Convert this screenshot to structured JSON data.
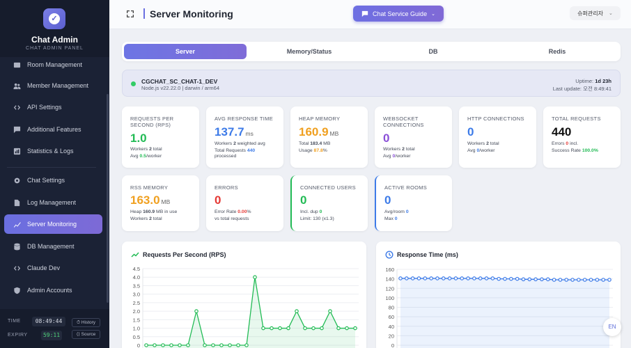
{
  "sidebar": {
    "brand_title": "Chat Admin",
    "brand_subtitle": "CHAT ADMIN PANEL",
    "items": [
      {
        "label": "Room Management",
        "icon": "room-icon"
      },
      {
        "label": "Member Management",
        "icon": "users-icon"
      },
      {
        "label": "API Settings",
        "icon": "code-icon"
      },
      {
        "label": "Additional Features",
        "icon": "chat-icon"
      },
      {
        "label": "Statistics & Logs",
        "icon": "stats-icon"
      },
      {
        "label": "Chat Settings",
        "icon": "gear-icon"
      },
      {
        "label": "Log Management",
        "icon": "file-icon"
      },
      {
        "label": "Server Monitoring",
        "icon": "chart-line-icon",
        "active": true
      },
      {
        "label": "DB Management",
        "icon": "database-icon"
      },
      {
        "label": "Claude Dev",
        "icon": "code-icon"
      },
      {
        "label": "Admin Accounts",
        "icon": "shield-icon"
      }
    ],
    "footer": {
      "time_label": "TIME",
      "time_value": "08:49:44",
      "history_label": "History",
      "expiry_label": "EXPIRY",
      "expiry_value": "59:11",
      "source_label": "Source"
    }
  },
  "header": {
    "title": "Server Monitoring",
    "guide_button": "Chat Service Guide",
    "user_button": "슈퍼관리자"
  },
  "tabs": [
    {
      "label": "Server",
      "active": true
    },
    {
      "label": "Memory/Status"
    },
    {
      "label": "DB"
    },
    {
      "label": "Redis"
    }
  ],
  "server": {
    "name": "CGCHAT_SC_CHAT-1_DEV",
    "info": "Node.js v22.22.0 | darwin / arm64",
    "uptime_label": "Uptime:",
    "uptime_value": "1d 23h",
    "last_update_label": "Last update:",
    "last_update_value": "오전 8:49:41",
    "status_color": "#33cc66"
  },
  "cards": {
    "rps": {
      "label": "REQUESTS PER SECOND (RPS)",
      "value": "1.0",
      "sub1_a": "Workers ",
      "sub1_b": "2",
      "sub1_c": " total",
      "sub2_a": "Avg ",
      "sub2_b": "0.5",
      "sub2_c": "/worker"
    },
    "avg_response": {
      "label": "AVG RESPONSE TIME",
      "value": "137.7",
      "unit": "ms",
      "sub1_a": "Workers ",
      "sub1_b": "2",
      "sub1_c": " weighted avg",
      "sub2_a": "Total Requests ",
      "sub2_b": "440",
      "sub3": "processed"
    },
    "heap": {
      "label": "HEAP MEMORY",
      "value": "160.9",
      "unit": "MB",
      "sub1_a": "Total ",
      "sub1_b": "183.4",
      "sub1_c": " MB",
      "sub2_a": "Usage ",
      "sub2_b": "87.8",
      "sub2_c": "%"
    },
    "websocket": {
      "label": "WEBSOCKET CONNECTIONS",
      "value": "0",
      "sub1_a": "Workers ",
      "sub1_b": "2",
      "sub1_c": " total",
      "sub2_a": "Avg ",
      "sub2_b": "0",
      "sub2_c": "/worker"
    },
    "http": {
      "label": "HTTP CONNECTIONS",
      "value": "0",
      "sub1_a": "Workers ",
      "sub1_b": "2",
      "sub1_c": " total",
      "sub2_a": "Avg ",
      "sub2_b": "0",
      "sub2_c": "/worker"
    },
    "total_requests": {
      "label": "TOTAL REQUESTS",
      "value": "440",
      "sub1_a": "Errors ",
      "sub1_b": "0",
      "sub1_c": " incl.",
      "sub2_a": "Success Rate ",
      "sub2_b": "100.0%"
    },
    "rss": {
      "label": "RSS MEMORY",
      "value": "163.0",
      "unit": "MB",
      "sub1_a": "Heap ",
      "sub1_b": "160.9",
      "sub1_c": " MB in use",
      "sub2_a": "Workers ",
      "sub2_b": "2",
      "sub2_c": " total"
    },
    "errors": {
      "label": "ERRORS",
      "value": "0",
      "sub1_a": "Error Rate ",
      "sub1_b": "0.00",
      "sub1_c": "%",
      "sub2": "vs total requests"
    },
    "connected_users": {
      "label": "CONNECTED USERS",
      "value": "0",
      "sub1_a": "Incl. dup ",
      "sub1_b": "0",
      "sub2": "Limit: 130 (x1.3)"
    },
    "active_rooms": {
      "label": "ACTIVE ROOMS",
      "value": "0",
      "sub1_a": "Avg/room ",
      "sub1_b": "0",
      "sub2_a": "Max ",
      "sub2_b": "0"
    }
  },
  "colors": {
    "green": "#22bb55",
    "blue": "#3d7be8",
    "orange": "#f0a020",
    "purple": "#8a4fd8",
    "red": "#e53935",
    "black": "#111111",
    "accent": "#6a6fe0"
  },
  "lang_button": "EN",
  "chart_data": [
    {
      "type": "line",
      "title": "Requests Per Second (RPS)",
      "ylim": [
        0,
        4.5
      ],
      "yticks": [
        "4.5",
        "4.0",
        "3.5",
        "3.0",
        "2.5",
        "2.0",
        "1.5",
        "1.0",
        "0.5",
        "0"
      ],
      "series": [
        {
          "values": [
            0,
            0,
            0,
            0,
            0,
            0,
            2,
            0,
            0,
            0,
            0,
            0,
            0,
            4,
            1,
            1,
            1,
            1,
            2,
            1,
            1,
            1,
            2,
            1,
            1,
            1
          ]
        }
      ]
    },
    {
      "type": "line",
      "title": "Response Time (ms)",
      "ylim": [
        0,
        160
      ],
      "yticks": [
        "160",
        "140",
        "120",
        "100",
        "80",
        "60",
        "40",
        "20",
        "0"
      ],
      "series": [
        {
          "values": [
            141,
            141,
            141,
            141,
            141,
            141,
            141,
            141,
            141,
            141,
            141,
            141,
            141,
            141,
            141,
            141,
            140,
            140,
            140,
            140,
            139,
            139,
            139,
            139,
            139,
            138,
            138,
            138,
            138,
            138,
            138,
            138,
            138,
            138,
            138
          ]
        }
      ]
    }
  ]
}
